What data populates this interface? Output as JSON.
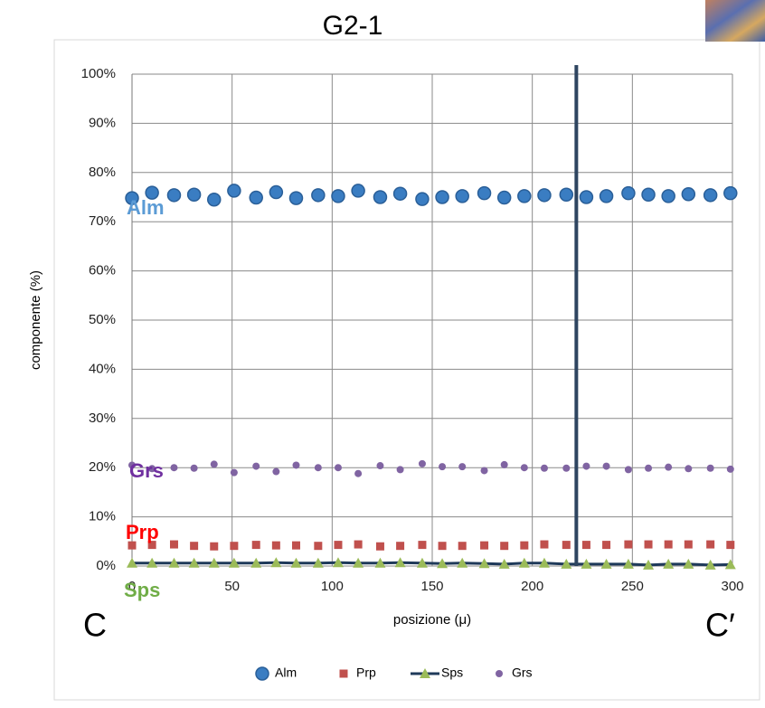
{
  "chart_data": {
    "type": "scatter",
    "title": "G2-1",
    "x_label": "posizione (μ)",
    "y_label": "componente (%)",
    "xlim": [
      0,
      300
    ],
    "xticks": [
      0,
      50,
      100,
      150,
      200,
      250,
      300
    ],
    "ylim": [
      0,
      100
    ],
    "yticks": [
      {
        "value": 0,
        "label": "0%"
      },
      {
        "value": 10,
        "label": "10%"
      },
      {
        "value": 20,
        "label": "20%"
      },
      {
        "value": 30,
        "label": "30%"
      },
      {
        "value": 40,
        "label": "40%"
      },
      {
        "value": 50,
        "label": "50%"
      },
      {
        "value": 60,
        "label": "60%"
      },
      {
        "value": 70,
        "label": "70%"
      },
      {
        "value": 80,
        "label": "80%"
      },
      {
        "value": 90,
        "label": "90%"
      },
      {
        "value": 100,
        "label": "100%"
      }
    ],
    "grid": true,
    "x": [
      0,
      10,
      21,
      31,
      41,
      51,
      62,
      72,
      82,
      93,
      103,
      113,
      124,
      134,
      145,
      155,
      165,
      176,
      186,
      196,
      206,
      217,
      227,
      237,
      248,
      258,
      268,
      278,
      289,
      299
    ],
    "series": [
      {
        "name": "Alm",
        "color": "#3a7dc2",
        "marker": "circle",
        "line": false,
        "values": [
          74.8,
          75.9,
          75.4,
          75.5,
          74.5,
          76.3,
          74.9,
          76.0,
          74.8,
          75.4,
          75.2,
          76.3,
          75.0,
          75.7,
          74.6,
          75.0,
          75.2,
          75.8,
          74.9,
          75.2,
          75.4,
          75.5,
          75.0,
          75.2,
          75.8,
          75.5,
          75.2,
          75.6,
          75.4,
          75.8
        ]
      },
      {
        "name": "Prp",
        "color": "#c0504d",
        "marker": "square",
        "line": false,
        "values": [
          4.2,
          4.3,
          4.4,
          4.1,
          4.0,
          4.1,
          4.3,
          4.2,
          4.2,
          4.1,
          4.3,
          4.4,
          4.0,
          4.1,
          4.3,
          4.1,
          4.1,
          4.2,
          4.1,
          4.2,
          4.4,
          4.3,
          4.3,
          4.3,
          4.4,
          4.4,
          4.4,
          4.4,
          4.4,
          4.3
        ]
      },
      {
        "name": "Sps",
        "color": "#9bbb59",
        "marker": "triangle",
        "line": true,
        "line_color": "#1f3a5a",
        "values": [
          0.6,
          0.6,
          0.6,
          0.6,
          0.6,
          0.6,
          0.6,
          0.7,
          0.6,
          0.6,
          0.7,
          0.6,
          0.6,
          0.7,
          0.6,
          0.5,
          0.6,
          0.5,
          0.4,
          0.6,
          0.6,
          0.4,
          0.4,
          0.4,
          0.4,
          0.2,
          0.4,
          0.4,
          0.2,
          0.3
        ]
      },
      {
        "name": "Grs",
        "color": "#8064a2",
        "marker": "dot",
        "line": false,
        "values": [
          20.5,
          19.8,
          20.0,
          19.9,
          20.7,
          19.0,
          20.3,
          19.2,
          20.5,
          20.0,
          20.0,
          18.8,
          20.4,
          19.6,
          20.8,
          20.2,
          20.2,
          19.4,
          20.6,
          20.0,
          19.9,
          19.9,
          20.3,
          20.3,
          19.6,
          19.9,
          20.1,
          19.8,
          19.9,
          19.7
        ]
      }
    ],
    "vline": {
      "x": 222,
      "color": "#2e4560"
    },
    "annotations": [
      "Alm",
      "Grs",
      "Prp",
      "Sps",
      "C",
      "C′"
    ]
  }
}
